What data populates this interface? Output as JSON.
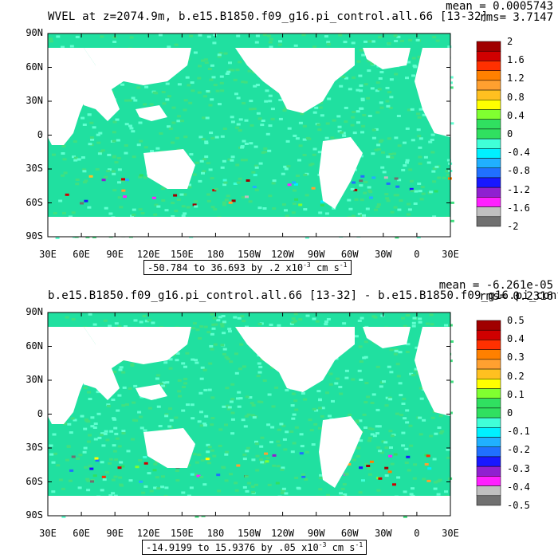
{
  "colors": {
    "land": "#ffffff",
    "ocean_base": "#20e0a0",
    "palette": [
      "#707070",
      "#c0c0c0",
      "#ff20ff",
      "#9020d0",
      "#1818ff",
      "#2070ff",
      "#20b0ff",
      "#00f0ff",
      "#40ffd8",
      "#30e060",
      "#30e060",
      "#80ff30",
      "#ffff00",
      "#ffc020",
      "#ffa030",
      "#ff8000",
      "#ff3000",
      "#d00000",
      "#a00000"
    ]
  },
  "panels": [
    {
      "title": "WVEL at z=2074.9m, b.e15.B1850.f09_g16.pi_control.all.66 [13-32]",
      "mean_label": "mean = 0.0005743",
      "rms_label": "rms= 3.7147",
      "range_label": "-50.784 to 36.693 by .2 x10",
      "range_exp": "-3",
      "range_unit": "cm s",
      "range_unit_exp": "-1",
      "colorbar_labels": [
        "2",
        "1.6",
        "1.2",
        "0.8",
        "0.4",
        "0",
        "-0.4",
        "-0.8",
        "-1.2",
        "-1.6",
        "-2"
      ]
    },
    {
      "title": "b.e15.B1850.f09_g16.pi_control.all.66 [13-32] - b.e15.B1850.f09_g16.pi_control",
      "mean_label": "mean = -6.261e-05",
      "rms_label": "rms= 0.2316",
      "range_label": "-14.9199 to 15.9376 by .05 x10",
      "range_exp": "-3",
      "range_unit": "cm s",
      "range_unit_exp": "-1",
      "colorbar_labels": [
        "0.5",
        "0.4",
        "0.3",
        "0.2",
        "0.1",
        "0",
        "-0.1",
        "-0.2",
        "-0.3",
        "-0.4",
        "-0.5"
      ]
    }
  ],
  "axes": {
    "lat_labels": [
      "90N",
      "60N",
      "30N",
      "0",
      "30S",
      "60S",
      "90S"
    ],
    "lon_labels": [
      "30E",
      "60E",
      "90E",
      "120E",
      "150E",
      "180",
      "150W",
      "120W",
      "90W",
      "60W",
      "30W",
      "0",
      "30E"
    ]
  },
  "chart_data": [
    {
      "type": "heatmap",
      "title": "WVEL at z=2074.9m, b.e15.B1850.f09_g16.pi_control.all.66 [13-32]",
      "xlabel": "",
      "ylabel": "",
      "x_ticks": [
        "30E",
        "60E",
        "90E",
        "120E",
        "150E",
        "180",
        "150W",
        "120W",
        "90W",
        "60W",
        "30W",
        "0",
        "30E"
      ],
      "y_ticks": [
        "90N",
        "60N",
        "30N",
        "0",
        "30S",
        "60S",
        "90S"
      ],
      "xlim": [
        30,
        390
      ],
      "ylim": [
        -90,
        90
      ],
      "color_levels": [
        -2,
        -1.8,
        -1.6,
        -1.4,
        -1.2,
        -1,
        -0.8,
        -0.6,
        -0.4,
        -0.2,
        0,
        0.2,
        0.4,
        0.6,
        0.8,
        1,
        1.2,
        1.4,
        1.6,
        1.8,
        2
      ],
      "data_min": -50.784,
      "data_max": 36.693,
      "contour_interval": 0.2,
      "units": "x10^-3 cm s^-1",
      "mean": 0.0005743,
      "rms": 3.7147
    },
    {
      "type": "heatmap",
      "title": "b.e15.B1850.f09_g16.pi_control.all.66 [13-32] - b.e15.B1850.f09_g16.pi_control",
      "xlabel": "",
      "ylabel": "",
      "x_ticks": [
        "30E",
        "60E",
        "90E",
        "120E",
        "150E",
        "180",
        "150W",
        "120W",
        "90W",
        "60W",
        "30W",
        "0",
        "30E"
      ],
      "y_ticks": [
        "90N",
        "60N",
        "30N",
        "0",
        "30S",
        "60S",
        "90S"
      ],
      "xlim": [
        30,
        390
      ],
      "ylim": [
        -90,
        90
      ],
      "color_levels": [
        -0.5,
        -0.45,
        -0.4,
        -0.35,
        -0.3,
        -0.25,
        -0.2,
        -0.15,
        -0.1,
        -0.05,
        0,
        0.05,
        0.1,
        0.15,
        0.2,
        0.25,
        0.3,
        0.35,
        0.4,
        0.45,
        0.5
      ],
      "data_min": -14.9199,
      "data_max": 15.9376,
      "contour_interval": 0.05,
      "units": "x10^-3 cm s^-1",
      "mean": -6.261e-05,
      "rms": 0.2316
    }
  ]
}
